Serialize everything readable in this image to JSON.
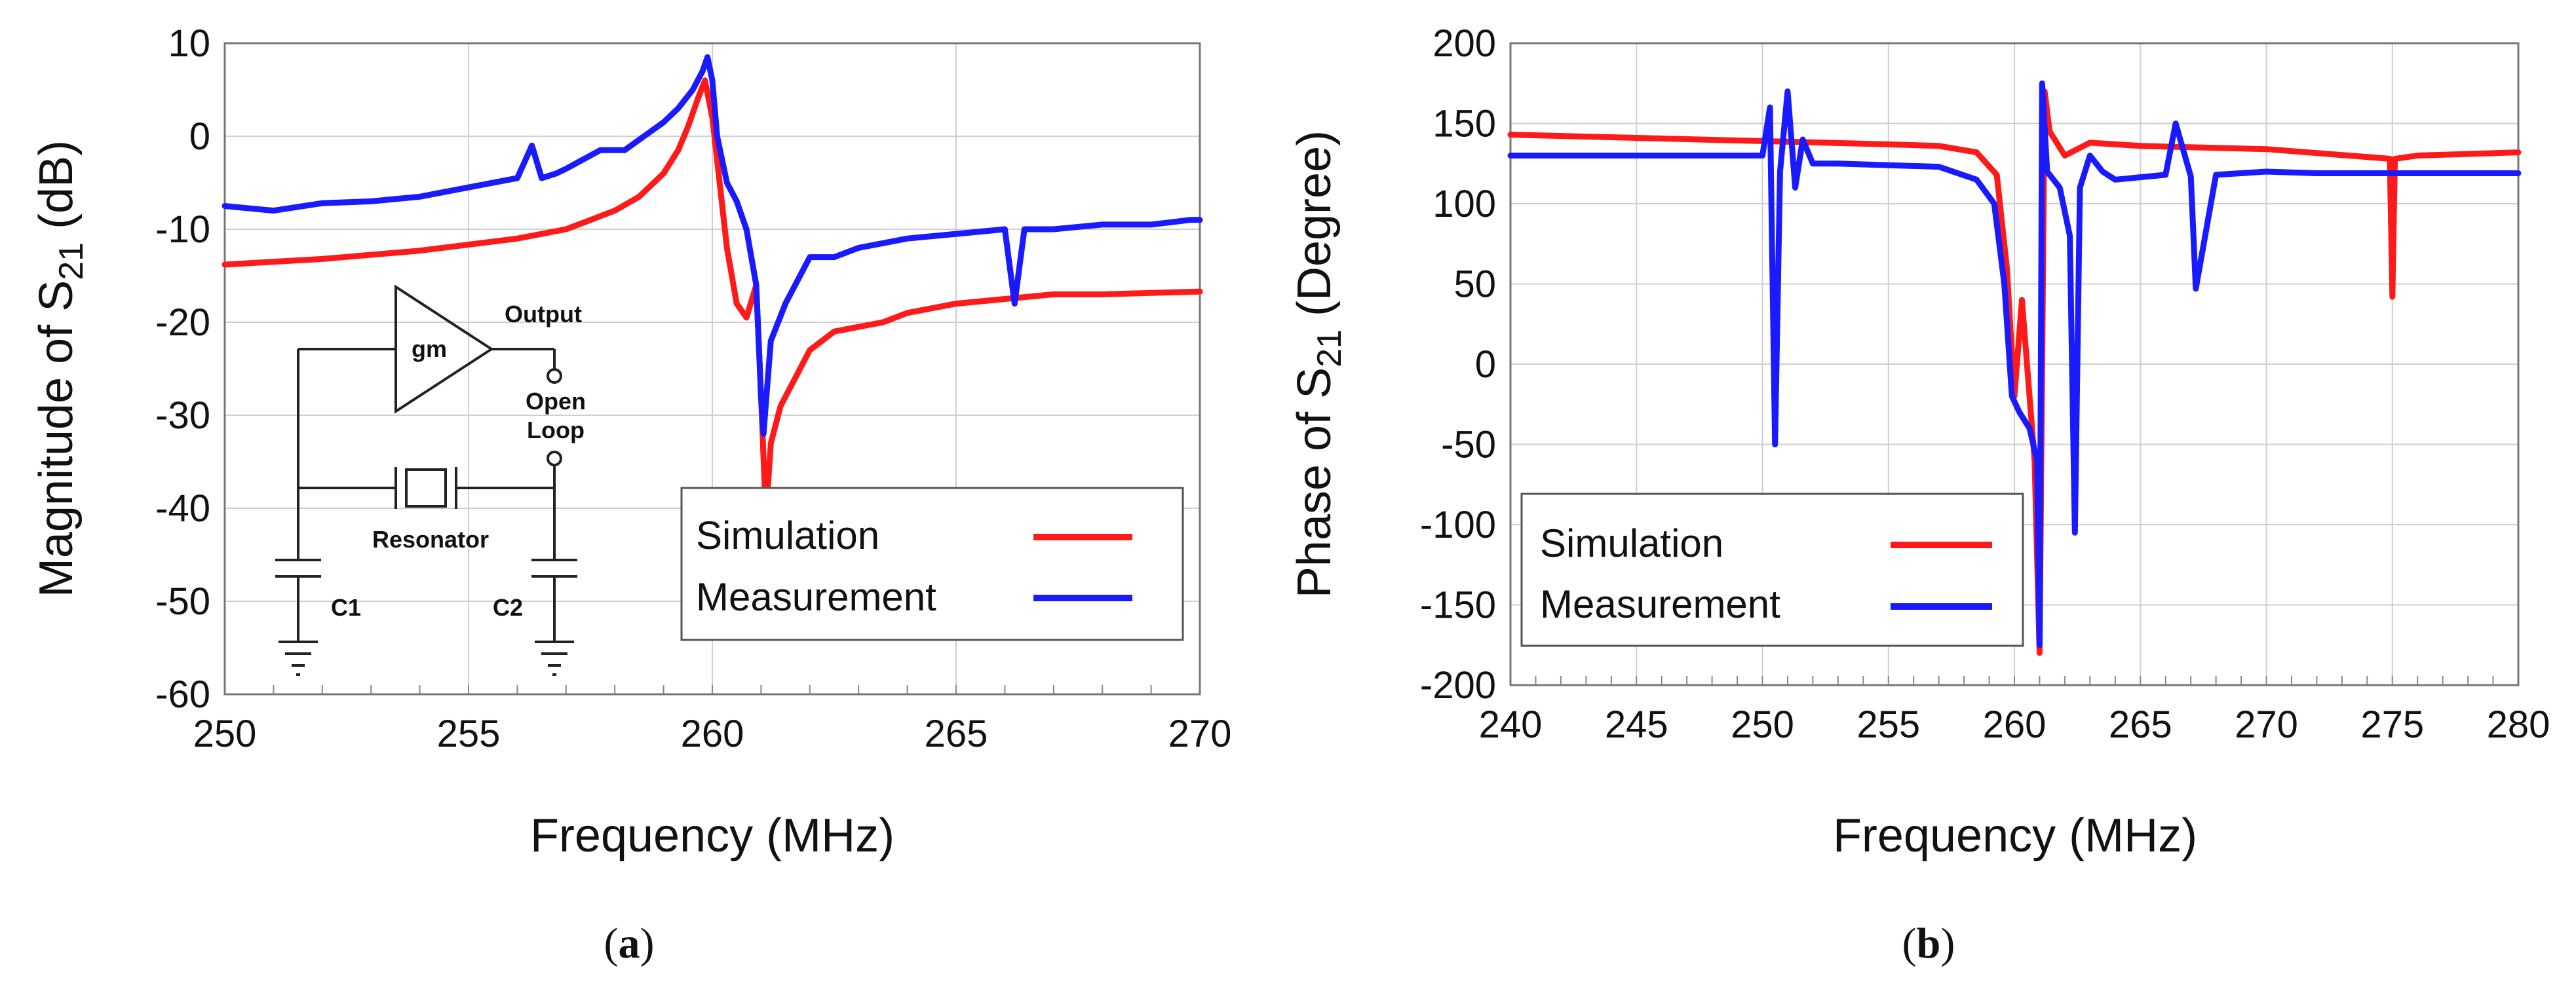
{
  "chart_data": [
    {
      "type": "line",
      "panel": "(a)",
      "caption_letter": "a",
      "xlabel": "Frequency (MHz)",
      "ylabel_main": "Magnitude of S",
      "ylabel_sub": "21",
      "ylabel_unit": " (dB)",
      "xlim": [
        250,
        270
      ],
      "ylim": [
        -60,
        10
      ],
      "xticks": [
        250,
        255,
        260,
        265,
        270
      ],
      "yticks": [
        10,
        0,
        -10,
        -20,
        -30,
        -40,
        -50,
        -60
      ],
      "xtick_labels": [
        "250",
        "255",
        "260",
        "265",
        "270"
      ],
      "ytick_labels": [
        "10",
        "0",
        "-10",
        "-20",
        "-30",
        "-40",
        "-50",
        "-60"
      ],
      "grid": true,
      "legend_position": "bottom-right",
      "series": [
        {
          "name": "Simulation",
          "color": "#ff1a1a",
          "x": [
            250,
            252,
            254,
            256,
            257,
            258,
            258.5,
            259,
            259.3,
            259.5,
            259.7,
            259.85,
            260.0,
            260.15,
            260.3,
            260.5,
            260.7,
            260.9,
            261.0,
            261.1,
            261.2,
            261.4,
            261.7,
            262.0,
            262.5,
            263.0,
            263.5,
            264,
            265,
            266,
            267,
            268,
            270
          ],
          "values": [
            -13.8,
            -13.2,
            -12.3,
            -11,
            -10,
            -8,
            -6.5,
            -4,
            -1.5,
            1,
            4,
            6,
            2,
            -5,
            -12,
            -18,
            -19.5,
            -16,
            -28,
            -41,
            -33,
            -29,
            -26,
            -23,
            -21,
            -20.5,
            -20,
            -19,
            -18,
            -17.5,
            -17,
            -17,
            -16.7
          ]
        },
        {
          "name": "Measurement",
          "color": "#1a1aff",
          "x": [
            250,
            251,
            252,
            253,
            254,
            255,
            256,
            256.3,
            256.5,
            256.8,
            257,
            257.7,
            258.2,
            258.6,
            259,
            259.3,
            259.6,
            259.8,
            259.9,
            260.0,
            260.1,
            260.3,
            260.5,
            260.7,
            260.9,
            261.0,
            261.05,
            261.2,
            261.5,
            261.8,
            262,
            262.5,
            263,
            264,
            265,
            266,
            266.2,
            266.4,
            267,
            268,
            269,
            269.8,
            270
          ],
          "values": [
            -7.5,
            -8,
            -7.2,
            -7,
            -6.5,
            -5.5,
            -4.5,
            -1,
            -4.5,
            -4,
            -3.5,
            -1.5,
            -1.5,
            0,
            1.5,
            3,
            5,
            7,
            8.5,
            6,
            0,
            -5,
            -7,
            -10,
            -16,
            -28,
            -32,
            -22,
            -18,
            -15,
            -13,
            -13,
            -12,
            -11,
            -10.5,
            -10,
            -18,
            -10,
            -10,
            -9.5,
            -9.5,
            -9,
            -9
          ]
        }
      ],
      "inset": {
        "output_label": "Output",
        "open_loop_label": "Open\nLoop",
        "resonator_label": "Resonator",
        "gain_label": "gm",
        "c1_label": "C1",
        "c2_label": "C2"
      }
    },
    {
      "type": "line",
      "panel": "(b)",
      "caption_letter": "b",
      "xlabel": "Frequency (MHz)",
      "ylabel_main": "Phase of S",
      "ylabel_sub": "21",
      "ylabel_unit": " (Degree)",
      "xlim": [
        240,
        280
      ],
      "ylim": [
        -200,
        200
      ],
      "xticks": [
        240,
        245,
        250,
        255,
        260,
        265,
        270,
        275,
        280
      ],
      "yticks": [
        200,
        150,
        100,
        50,
        0,
        -50,
        -100,
        -150,
        -200
      ],
      "xtick_labels": [
        "240",
        "245",
        "250",
        "255",
        "260",
        "265",
        "270",
        "275",
        "280"
      ],
      "ytick_labels": [
        "200",
        "150",
        "100",
        "50",
        "0",
        "-50",
        "-100",
        "-150",
        "-200"
      ],
      "grid": true,
      "legend_position": "bottom-left",
      "series": [
        {
          "name": "Simulation",
          "color": "#ff1a1a",
          "x": [
            240,
            245,
            250,
            255,
            257,
            258.5,
            259.3,
            259.7,
            260.0,
            260.3,
            260.5,
            260.8,
            261.0,
            261.2,
            261.4,
            262,
            263,
            265,
            270,
            274.9,
            275.0,
            275.1,
            276,
            280
          ],
          "values": [
            143,
            141,
            139,
            137,
            136,
            132,
            118,
            60,
            -20,
            40,
            0,
            -60,
            -180,
            170,
            145,
            130,
            138,
            136,
            134,
            128,
            42,
            128,
            130,
            132
          ]
        },
        {
          "name": "Measurement",
          "color": "#1a1aff",
          "x": [
            240,
            245,
            250,
            250.3,
            250.5,
            250.7,
            251,
            251.3,
            251.6,
            252,
            253,
            255,
            257,
            258.5,
            259.2,
            259.6,
            259.9,
            260.2,
            260.6,
            260.9,
            261.0,
            261.1,
            261.3,
            261.8,
            262.2,
            262.4,
            262.6,
            263,
            263.5,
            264,
            266,
            266.4,
            267,
            267.2,
            268,
            270,
            272,
            275,
            280
          ],
          "values": [
            130,
            130,
            130,
            160,
            -50,
            120,
            170,
            110,
            140,
            125,
            125,
            124,
            123,
            115,
            100,
            50,
            -20,
            -30,
            -40,
            -60,
            -175,
            175,
            120,
            110,
            80,
            -105,
            110,
            130,
            120,
            115,
            118,
            150,
            117,
            47,
            118,
            120,
            119,
            119,
            119
          ]
        }
      ]
    }
  ]
}
